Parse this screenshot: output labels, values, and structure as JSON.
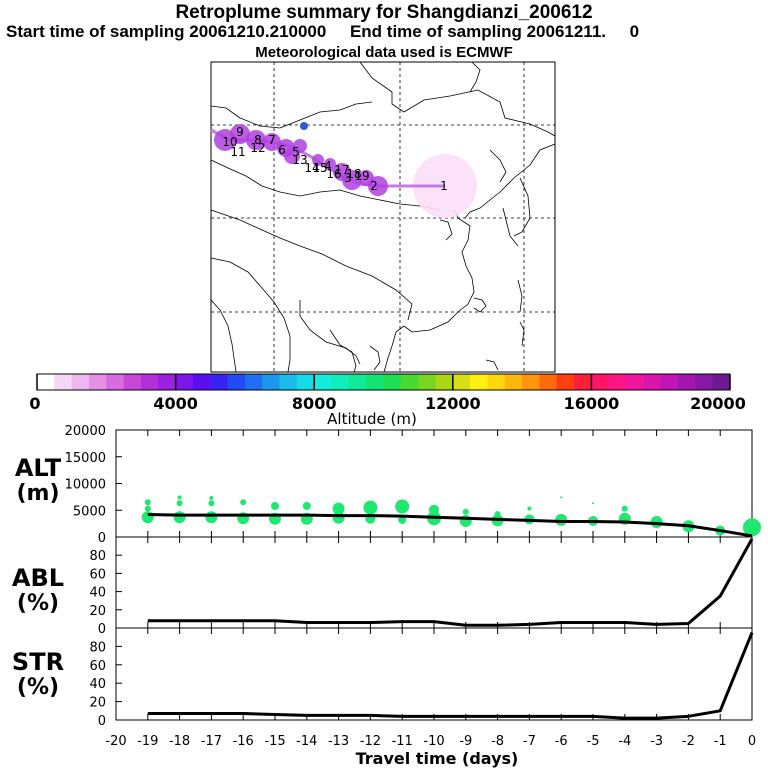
{
  "header": {
    "title": "Retroplume summary for Shangdianzi_200612",
    "sampling_line": "Start time of sampling 20061210.210000     End time of sampling 20061211.     0",
    "met_line": "Meteorological data used is ECMWF"
  },
  "colorbar": {
    "label": "Altitude (m)",
    "min": 0,
    "max": 20000,
    "ticks": [
      "0",
      "4000",
      "8000",
      "12000",
      "16000",
      "20000"
    ],
    "colors": [
      "#ffffff",
      "#f7d7f7",
      "#efb7ef",
      "#e58fe5",
      "#d76bdf",
      "#c847d7",
      "#b32fd7",
      "#9b20df",
      "#7e16e8",
      "#5a10ee",
      "#3a22f2",
      "#2449f6",
      "#1e6ff4",
      "#1c97f0",
      "#19bdea",
      "#15dbe6",
      "#12ecd8",
      "#10eeb8",
      "#10e996",
      "#12e473",
      "#1ddd52",
      "#49d933",
      "#7ad520",
      "#a9d716",
      "#d8e014",
      "#fff010",
      "#ffd70e",
      "#ffb70c",
      "#ff950b",
      "#ff6b0c",
      "#ff3e12",
      "#ff1e3e",
      "#ff1466",
      "#ff1486",
      "#f014a0",
      "#dc14ae",
      "#c214b4",
      "#a316b0",
      "#8718a4",
      "#6c1a94"
    ]
  },
  "map": {
    "description_labels": [
      "1",
      "2",
      "3",
      "4",
      "5",
      "6",
      "7",
      "8",
      "9",
      "10",
      "11",
      "12",
      "13",
      "14",
      "15",
      "16",
      "17",
      "18",
      "19"
    ],
    "track_color": "#b040e0",
    "source_color": "#f2a0f2"
  },
  "panels": {
    "alt_label": "ALT",
    "alt_unit": "(m)",
    "abl_label": "ABL",
    "abl_unit": "(%)",
    "str_label": "STR",
    "str_unit": "(%)",
    "xlabel": "Travel time (days)"
  },
  "chart_data": [
    {
      "type": "line",
      "title": "ALT",
      "ylabel": "ALT (m)",
      "xlabel": "Travel time (days)",
      "ylim": [
        0,
        20000
      ],
      "yticks": [
        "0",
        "5000",
        "10000",
        "15000",
        "20000"
      ],
      "x": [
        0,
        -1,
        -2,
        -3,
        -4,
        -5,
        -6,
        -7,
        -8,
        -9,
        -10,
        -11,
        -12,
        -13,
        -14,
        -15,
        -16,
        -17,
        -18,
        -19
      ],
      "values": [
        200,
        1200,
        2100,
        2500,
        2800,
        2900,
        2900,
        3100,
        3300,
        3500,
        3700,
        3900,
        4000,
        4000,
        4100,
        4100,
        4100,
        4100,
        4100,
        4200
      ],
      "dots": [
        {
          "x": 0,
          "y": 1800,
          "size": 9
        },
        {
          "x": -1,
          "y": 1200,
          "size": 5
        },
        {
          "x": -2,
          "y": 2000,
          "size": 6
        },
        {
          "x": -3,
          "y": 2800,
          "size": 6
        },
        {
          "x": -4,
          "y": 3400,
          "size": 6
        },
        {
          "x": -4,
          "y": 5300,
          "size": 3
        },
        {
          "x": -5,
          "y": 3000,
          "size": 5
        },
        {
          "x": -5,
          "y": 6300,
          "size": 1
        },
        {
          "x": -6,
          "y": 3200,
          "size": 6
        },
        {
          "x": -6,
          "y": 7400,
          "size": 1
        },
        {
          "x": -7,
          "y": 3300,
          "size": 5
        },
        {
          "x": -7,
          "y": 5300,
          "size": 2
        },
        {
          "x": -8,
          "y": 3100,
          "size": 6
        },
        {
          "x": -8,
          "y": 4300,
          "size": 3
        },
        {
          "x": -9,
          "y": 3000,
          "size": 6
        },
        {
          "x": -9,
          "y": 4700,
          "size": 3
        },
        {
          "x": -10,
          "y": 3500,
          "size": 7
        },
        {
          "x": -10,
          "y": 5100,
          "size": 5
        },
        {
          "x": -11,
          "y": 3200,
          "size": 4
        },
        {
          "x": -11,
          "y": 5700,
          "size": 7
        },
        {
          "x": -12,
          "y": 3400,
          "size": 5
        },
        {
          "x": -12,
          "y": 5500,
          "size": 7
        },
        {
          "x": -13,
          "y": 3600,
          "size": 6
        },
        {
          "x": -13,
          "y": 5300,
          "size": 6
        },
        {
          "x": -14,
          "y": 3400,
          "size": 6
        },
        {
          "x": -14,
          "y": 5800,
          "size": 4
        },
        {
          "x": -15,
          "y": 3400,
          "size": 6
        },
        {
          "x": -15,
          "y": 5800,
          "size": 4
        },
        {
          "x": -16,
          "y": 3500,
          "size": 6
        },
        {
          "x": -16,
          "y": 6500,
          "size": 3
        },
        {
          "x": -17,
          "y": 3700,
          "size": 6
        },
        {
          "x": -17,
          "y": 6300,
          "size": 3
        },
        {
          "x": -17,
          "y": 7300,
          "size": 2
        },
        {
          "x": -18,
          "y": 3700,
          "size": 6
        },
        {
          "x": -18,
          "y": 6300,
          "size": 3
        },
        {
          "x": -18,
          "y": 7400,
          "size": 2
        },
        {
          "x": -19,
          "y": 3700,
          "size": 6
        },
        {
          "x": -19,
          "y": 5300,
          "size": 3
        },
        {
          "x": -19,
          "y": 6500,
          "size": 3
        }
      ]
    },
    {
      "type": "line",
      "title": "ABL",
      "ylabel": "ABL (%)",
      "xlabel": "Travel time (days)",
      "ylim": [
        0,
        100
      ],
      "yticks": [
        "0",
        "20",
        "40",
        "60",
        "80"
      ],
      "x": [
        0,
        -1,
        -2,
        -3,
        -4,
        -5,
        -6,
        -7,
        -8,
        -9,
        -10,
        -11,
        -12,
        -13,
        -14,
        -15,
        -16,
        -17,
        -18,
        -19
      ],
      "values": [
        98,
        35,
        5,
        4,
        6,
        6,
        6,
        4,
        3,
        3,
        7,
        7,
        6,
        6,
        6,
        8,
        8,
        8,
        8,
        8
      ]
    },
    {
      "type": "line",
      "title": "STR",
      "ylabel": "STR (%)",
      "xlabel": "Travel time (days)",
      "ylim": [
        0,
        100
      ],
      "yticks": [
        "0",
        "20",
        "40",
        "60",
        "80"
      ],
      "x": [
        0,
        -1,
        -2,
        -3,
        -4,
        -5,
        -6,
        -7,
        -8,
        -9,
        -10,
        -11,
        -12,
        -13,
        -14,
        -15,
        -16,
        -17,
        -18,
        -19
      ],
      "values": [
        95,
        10,
        4,
        2,
        2,
        4,
        4,
        4,
        4,
        4,
        4,
        4,
        5,
        5,
        5,
        6,
        7,
        7,
        7,
        7
      ]
    }
  ],
  "xaxis": {
    "ticks": [
      "-20",
      "-19",
      "-18",
      "-17",
      "-16",
      "-15",
      "-14",
      "-13",
      "-12",
      "-11",
      "-10",
      "-9",
      "-8",
      "-7",
      "-6",
      "-5",
      "-4",
      "-3",
      "-2",
      "-1",
      "0"
    ]
  }
}
